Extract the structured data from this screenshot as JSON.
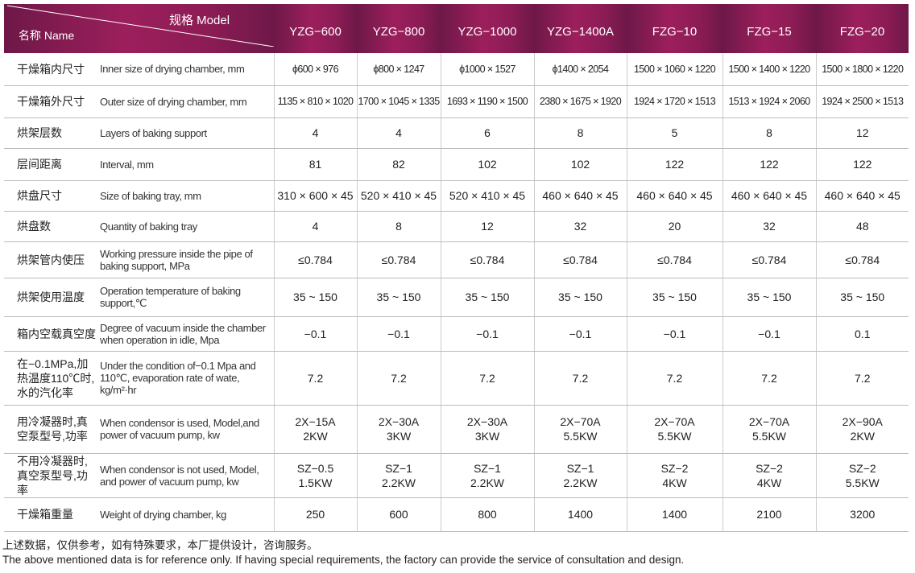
{
  "header": {
    "spec": "规格 Model",
    "name": "名称 Name",
    "models": [
      "YZG−600",
      "YZG−800",
      "YZG−1000",
      "YZG−1400A",
      "FZG−10",
      "FZG−15",
      "FZG−20"
    ]
  },
  "rows": [
    {
      "cn": "干燥箱内尺寸",
      "en": "Inner size of drying chamber, mm",
      "values": [
        "ϕ600 × 976",
        "ϕ800 × 1247",
        "ϕ1000 × 1527",
        "ϕ1400 × 2054",
        "1500 × 1060 × 1220",
        "1500 × 1400 × 1220",
        "1500 × 1800 × 1220"
      ]
    },
    {
      "cn": "干燥箱外尺寸",
      "en": "Outer size of drying chamber, mm",
      "values": [
        "1135 × 810 × 1020",
        "1700 × 1045 × 1335",
        "1693 × 1190 × 1500",
        "2380 × 1675 × 1920",
        "1924 × 1720 × 1513",
        "1513 × 1924 × 2060",
        "1924 × 2500 × 1513"
      ]
    },
    {
      "cn": "烘架层数",
      "en": "Layers of baking support",
      "values": [
        "4",
        "4",
        "6",
        "8",
        "5",
        "8",
        "12"
      ]
    },
    {
      "cn": "层间距离",
      "en": "Interval, mm",
      "values": [
        "81",
        "82",
        "102",
        "102",
        "122",
        "122",
        "122"
      ]
    },
    {
      "cn": "烘盘尺寸",
      "en": "Size of baking tray, mm",
      "values": [
        "310 × 600 × 45",
        "520 × 410 × 45",
        "520 × 410 × 45",
        "460 × 640 × 45",
        "460 × 640 × 45",
        "460 × 640 × 45",
        "460 × 640 × 45"
      ]
    },
    {
      "cn": "烘盘数",
      "en": "Quantity of baking tray",
      "values": [
        "4",
        "8",
        "12",
        "32",
        "20",
        "32",
        "48"
      ]
    },
    {
      "cn": "烘架管内使压",
      "en": "Working pressure inside the pipe of baking support, MPa",
      "values": [
        "≤0.784",
        "≤0.784",
        "≤0.784",
        "≤0.784",
        "≤0.784",
        "≤0.784",
        "≤0.784"
      ]
    },
    {
      "cn": "烘架使用温度",
      "en": "Operation temperature of baking support,℃",
      "values": [
        "35 ~ 150",
        "35 ~ 150",
        "35 ~ 150",
        "35 ~ 150",
        "35 ~ 150",
        "35 ~ 150",
        "35 ~ 150"
      ]
    },
    {
      "cn": "箱内空载真空度",
      "en": "Degree of vacuum inside the chamber when operation in idle, Mpa",
      "values": [
        "−0.1",
        "−0.1",
        "−0.1",
        "−0.1",
        "−0.1",
        "−0.1",
        "0.1"
      ]
    },
    {
      "cn": "在−0.1MPa,加热温度110℃时,水的汽化率",
      "en": "Under the condition of−0.1 Mpa and 110℃, evaporation rate of wate, kg/m²·hr",
      "values": [
        "7.2",
        "7.2",
        "7.2",
        "7.2",
        "7.2",
        "7.2",
        "7.2"
      ]
    },
    {
      "cn": "用冷凝器时,真空泵型号,功率",
      "en": "When condensor is used, Model,and power of vacuum pump, kw",
      "values": [
        [
          "2X−15A",
          "2KW"
        ],
        [
          "2X−30A",
          "3KW"
        ],
        [
          "2X−30A",
          "3KW"
        ],
        [
          "2X−70A",
          "5.5KW"
        ],
        [
          "2X−70A",
          "5.5KW"
        ],
        [
          "2X−70A",
          "5.5KW"
        ],
        [
          "2X−90A",
          "2KW"
        ]
      ]
    },
    {
      "cn": "不用冷凝器时,真空泵型号,功率",
      "en": "When condensor is not used, Model, and power of vacuum pump, kw",
      "values": [
        [
          "SZ−0.5",
          "1.5KW"
        ],
        [
          "SZ−1",
          "2.2KW"
        ],
        [
          "SZ−1",
          "2.2KW"
        ],
        [
          "SZ−1",
          "2.2KW"
        ],
        [
          "SZ−2",
          "4KW"
        ],
        [
          "SZ−2",
          "4KW"
        ],
        [
          "SZ−2",
          "5.5KW"
        ]
      ]
    },
    {
      "cn": "干燥箱重量",
      "en": "Weight of drying chamber, kg",
      "values": [
        "250",
        "600",
        "800",
        "1400",
        "1400",
        "2100",
        "3200"
      ]
    }
  ],
  "notes": [
    "上述数据，仅供参考，如有特殊要求，本厂提供设计，咨询服务。",
    "The above mentioned data is for reference only. If having special requirements, the factory can provide the service of consultation and design."
  ]
}
